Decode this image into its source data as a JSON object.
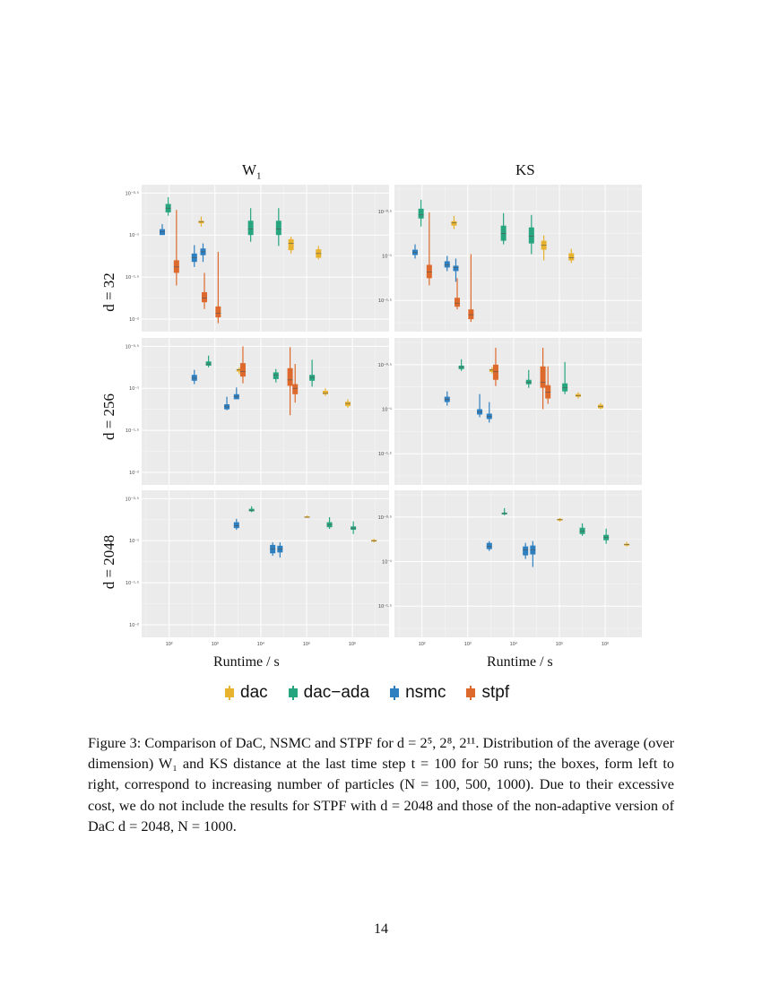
{
  "figure": {
    "column_titles": [
      "W1",
      "KS"
    ],
    "row_labels": [
      "d = 32",
      "d = 256",
      "d = 2048"
    ],
    "x_axis_title": "Runtime / s",
    "x_tick_labels": [
      "10²",
      "10³",
      "10⁴",
      "10⁵",
      "10⁶"
    ],
    "legend": [
      {
        "label": "dac",
        "color": "#E7B22D"
      },
      {
        "label": "dac−ada",
        "color": "#27A57F"
      },
      {
        "label": "nsmc",
        "color": "#2E7FBF"
      },
      {
        "label": "stpf",
        "color": "#DD6A2C"
      }
    ]
  },
  "chart_data": {
    "type": "boxplot",
    "x_scale": "log10",
    "y_scale": "log10",
    "x_unit": "Runtime / s",
    "xlim_log10": [
      1.4,
      6.8
    ],
    "series_colors": {
      "dac": "#E7B22D",
      "dac-ada": "#27A57F",
      "nsmc": "#2E7FBF",
      "stpf": "#DD6A2C"
    },
    "panels": [
      {
        "row": "d = 32",
        "column": "W1",
        "y_tick_labels": [
          "10⁻⁰·⁵",
          "10⁻¹",
          "10⁻¹·⁵",
          "10⁻²"
        ],
        "y_tick_values": [
          -0.5,
          -1,
          -1.5,
          -2
        ],
        "ylim_log10": [
          -2.15,
          -0.4
        ],
        "boxes": [
          {
            "series": "nsmc",
            "x": 1.85,
            "wl": -0.95,
            "q1": -1.0,
            "med": -0.96,
            "q3": -0.93,
            "wh": -0.87
          },
          {
            "series": "dac-ada",
            "x": 1.98,
            "wl": -0.77,
            "q1": -0.73,
            "med": -0.68,
            "q3": -0.63,
            "wh": -0.55
          },
          {
            "series": "stpf",
            "x": 2.16,
            "wl": -1.6,
            "q1": -1.45,
            "med": -1.38,
            "q3": -1.3,
            "wh": -0.7
          },
          {
            "series": "nsmc",
            "x": 2.55,
            "wl": -1.38,
            "q1": -1.32,
            "med": -1.27,
            "q3": -1.22,
            "wh": -1.12
          },
          {
            "series": "dac",
            "x": 2.7,
            "wl": -0.9,
            "q1": -0.86,
            "med": -0.84,
            "q3": -0.83,
            "wh": -0.78
          },
          {
            "series": "nsmc",
            "x": 2.74,
            "wl": -1.32,
            "q1": -1.24,
            "med": -1.2,
            "q3": -1.16,
            "wh": -1.1
          },
          {
            "series": "stpf",
            "x": 2.77,
            "wl": -1.88,
            "q1": -1.8,
            "med": -1.75,
            "q3": -1.68,
            "wh": -1.45
          },
          {
            "series": "stpf",
            "x": 3.07,
            "wl": -2.05,
            "q1": -1.98,
            "med": -1.93,
            "q3": -1.85,
            "wh": -1.2
          },
          {
            "series": "dac-ada",
            "x": 3.78,
            "wl": -1.08,
            "q1": -1.0,
            "med": -0.93,
            "q3": -0.83,
            "wh": -0.68
          },
          {
            "series": "dac-ada",
            "x": 4.39,
            "wl": -1.13,
            "q1": -1.0,
            "med": -0.93,
            "q3": -0.83,
            "wh": -0.68
          },
          {
            "series": "dac",
            "x": 4.66,
            "wl": -1.22,
            "q1": -1.18,
            "med": -1.1,
            "q3": -1.05,
            "wh": -1.02
          },
          {
            "series": "dac",
            "x": 5.26,
            "wl": -1.29,
            "q1": -1.27,
            "med": -1.22,
            "q3": -1.17,
            "wh": -1.13
          }
        ]
      },
      {
        "row": "d = 32",
        "column": "KS",
        "y_tick_labels": [
          "10⁻⁰·⁵",
          "10⁻¹",
          "10⁻¹·⁵"
        ],
        "y_tick_values": [
          -0.5,
          -1,
          -1.5
        ],
        "ylim_log10": [
          -1.85,
          -0.2
        ],
        "boxes": [
          {
            "series": "nsmc",
            "x": 1.85,
            "wl": -1.03,
            "q1": -0.99,
            "med": -0.96,
            "q3": -0.93,
            "wh": -0.87
          },
          {
            "series": "dac-ada",
            "x": 1.98,
            "wl": -0.67,
            "q1": -0.58,
            "med": -0.54,
            "q3": -0.47,
            "wh": -0.37
          },
          {
            "series": "stpf",
            "x": 2.16,
            "wl": -1.33,
            "q1": -1.25,
            "med": -1.18,
            "q3": -1.1,
            "wh": -0.51
          },
          {
            "series": "nsmc",
            "x": 2.55,
            "wl": -1.17,
            "q1": -1.13,
            "med": -1.1,
            "q3": -1.06,
            "wh": -1.0
          },
          {
            "series": "dac",
            "x": 2.7,
            "wl": -0.7,
            "q1": -0.66,
            "med": -0.63,
            "q3": -0.61,
            "wh": -0.55
          },
          {
            "series": "nsmc",
            "x": 2.74,
            "wl": -1.29,
            "q1": -1.17,
            "med": -1.13,
            "q3": -1.11,
            "wh": -1.03
          },
          {
            "series": "stpf",
            "x": 2.77,
            "wl": -1.6,
            "q1": -1.57,
            "med": -1.53,
            "q3": -1.47,
            "wh": -1.25
          },
          {
            "series": "stpf",
            "x": 3.07,
            "wl": -1.74,
            "q1": -1.71,
            "med": -1.66,
            "q3": -1.6,
            "wh": -0.98
          },
          {
            "series": "dac-ada",
            "x": 3.78,
            "wl": -0.87,
            "q1": -0.83,
            "med": -0.75,
            "q3": -0.66,
            "wh": -0.52
          },
          {
            "series": "dac-ada",
            "x": 4.39,
            "wl": -0.98,
            "q1": -0.86,
            "med": -0.78,
            "q3": -0.68,
            "wh": -0.54
          },
          {
            "series": "dac",
            "x": 4.66,
            "wl": -1.05,
            "q1": -0.93,
            "med": -0.88,
            "q3": -0.83,
            "wh": -0.77
          },
          {
            "series": "dac",
            "x": 5.26,
            "wl": -1.08,
            "q1": -1.05,
            "med": -1.02,
            "q3": -0.97,
            "wh": -0.92
          }
        ]
      },
      {
        "row": "d = 256",
        "column": "W1",
        "y_tick_labels": [
          "10⁻⁰·⁵",
          "10⁻¹",
          "10⁻¹·⁵",
          "10⁻²"
        ],
        "y_tick_values": [
          -0.5,
          -1,
          -1.5,
          -2
        ],
        "ylim_log10": [
          -2.15,
          -0.4
        ],
        "boxes": [
          {
            "series": "nsmc",
            "x": 2.55,
            "wl": -0.95,
            "q1": -0.91,
            "med": -0.88,
            "q3": -0.84,
            "wh": -0.78
          },
          {
            "series": "dac-ada",
            "x": 2.86,
            "wl": -0.75,
            "q1": -0.73,
            "med": -0.71,
            "q3": -0.68,
            "wh": -0.61
          },
          {
            "series": "nsmc",
            "x": 3.26,
            "wl": -1.26,
            "q1": -1.25,
            "med": -1.22,
            "q3": -1.19,
            "wh": -1.1
          },
          {
            "series": "nsmc",
            "x": 3.47,
            "wl": -1.13,
            "q1": -1.13,
            "med": -1.1,
            "q3": -1.07,
            "wh": -0.99
          },
          {
            "series": "dac",
            "x": 3.53,
            "wl": -0.83,
            "q1": -0.8,
            "med": -0.78,
            "q3": -0.77,
            "wh": -0.75
          },
          {
            "series": "stpf",
            "x": 3.61,
            "wl": -0.94,
            "q1": -0.86,
            "med": -0.8,
            "q3": -0.7,
            "wh": -0.5
          },
          {
            "series": "dac-ada",
            "x": 4.33,
            "wl": -0.93,
            "q1": -0.89,
            "med": -0.84,
            "q3": -0.81,
            "wh": -0.77
          },
          {
            "series": "stpf",
            "x": 4.64,
            "wl": -1.32,
            "q1": -0.97,
            "med": -0.9,
            "q3": -0.76,
            "wh": -0.51
          },
          {
            "series": "stpf",
            "x": 4.75,
            "wl": -1.17,
            "q1": -1.07,
            "med": -1.0,
            "q3": -0.95,
            "wh": -0.71
          },
          {
            "series": "dac-ada",
            "x": 5.12,
            "wl": -0.98,
            "q1": -0.91,
            "med": -0.87,
            "q3": -0.84,
            "wh": -0.66
          },
          {
            "series": "dac",
            "x": 5.41,
            "wl": -1.09,
            "q1": -1.07,
            "med": -1.06,
            "q3": -1.03,
            "wh": -1.0
          },
          {
            "series": "dac",
            "x": 5.9,
            "wl": -1.23,
            "q1": -1.21,
            "med": -1.18,
            "q3": -1.16,
            "wh": -1.13
          }
        ]
      },
      {
        "row": "d = 256",
        "column": "KS",
        "y_tick_labels": [
          "10⁻⁰·⁵",
          "10⁻¹",
          "10⁻¹·⁵"
        ],
        "y_tick_values": [
          -0.5,
          -1,
          -1.5
        ],
        "ylim_log10": [
          -1.85,
          -0.2
        ],
        "boxes": [
          {
            "series": "nsmc",
            "x": 2.55,
            "wl": -0.96,
            "q1": -0.92,
            "med": -0.89,
            "q3": -0.86,
            "wh": -0.8
          },
          {
            "series": "dac-ada",
            "x": 2.86,
            "wl": -0.57,
            "q1": -0.55,
            "med": -0.53,
            "q3": -0.51,
            "wh": -0.44
          },
          {
            "series": "nsmc",
            "x": 3.26,
            "wl": -1.09,
            "q1": -1.06,
            "med": -1.03,
            "q3": -1.0,
            "wh": -0.83
          },
          {
            "series": "nsmc",
            "x": 3.47,
            "wl": -1.15,
            "q1": -1.11,
            "med": -1.08,
            "q3": -1.05,
            "wh": -0.92
          },
          {
            "series": "dac",
            "x": 3.53,
            "wl": -0.6,
            "q1": -0.58,
            "med": -0.56,
            "q3": -0.55,
            "wh": -0.53
          },
          {
            "series": "stpf",
            "x": 3.61,
            "wl": -0.74,
            "q1": -0.67,
            "med": -0.58,
            "q3": -0.5,
            "wh": -0.31
          },
          {
            "series": "dac-ada",
            "x": 4.33,
            "wl": -0.76,
            "q1": -0.72,
            "med": -0.7,
            "q3": -0.67,
            "wh": -0.56
          },
          {
            "series": "stpf",
            "x": 4.64,
            "wl": -1.0,
            "q1": -0.76,
            "med": -0.7,
            "q3": -0.52,
            "wh": -0.31
          },
          {
            "series": "stpf",
            "x": 4.75,
            "wl": -0.94,
            "q1": -0.88,
            "med": -0.81,
            "q3": -0.73,
            "wh": -0.52
          },
          {
            "series": "dac-ada",
            "x": 5.12,
            "wl": -0.83,
            "q1": -0.8,
            "med": -0.76,
            "q3": -0.71,
            "wh": -0.47
          },
          {
            "series": "dac",
            "x": 5.41,
            "wl": -0.88,
            "q1": -0.86,
            "med": -0.85,
            "q3": -0.83,
            "wh": -0.81
          },
          {
            "series": "dac",
            "x": 5.9,
            "wl": -1.0,
            "q1": -0.99,
            "med": -0.97,
            "q3": -0.95,
            "wh": -0.93
          }
        ]
      },
      {
        "row": "d = 2048",
        "column": "W1",
        "y_tick_labels": [
          "10⁻⁰·⁵",
          "10⁻¹",
          "10⁻¹·⁵",
          "10⁻²"
        ],
        "y_tick_values": [
          -0.5,
          -1,
          -1.5,
          -2
        ],
        "ylim_log10": [
          -2.15,
          -0.4
        ],
        "boxes": [
          {
            "series": "nsmc",
            "x": 3.47,
            "wl": -0.87,
            "q1": -0.85,
            "med": -0.82,
            "q3": -0.78,
            "wh": -0.74
          },
          {
            "series": "dac-ada",
            "x": 3.8,
            "wl": -0.66,
            "q1": -0.65,
            "med": -0.64,
            "q3": -0.62,
            "wh": -0.59
          },
          {
            "series": "nsmc",
            "x": 4.26,
            "wl": -1.18,
            "q1": -1.15,
            "med": -1.1,
            "q3": -1.05,
            "wh": -1.02
          },
          {
            "series": "nsmc",
            "x": 4.42,
            "wl": -1.2,
            "q1": -1.14,
            "med": -1.1,
            "q3": -1.06,
            "wh": -1.02
          },
          {
            "series": "dac",
            "x": 5.01,
            "wl": -0.73,
            "q1": -0.72,
            "med": -0.72,
            "q3": -0.71,
            "wh": -0.7
          },
          {
            "series": "dac-ada",
            "x": 5.5,
            "wl": -0.86,
            "q1": -0.84,
            "med": -0.81,
            "q3": -0.78,
            "wh": -0.72
          },
          {
            "series": "dac-ada",
            "x": 6.02,
            "wl": -0.92,
            "q1": -0.87,
            "med": -0.85,
            "q3": -0.83,
            "wh": -0.77
          },
          {
            "series": "dac",
            "x": 6.47,
            "wl": -1.02,
            "q1": -1.01,
            "med": -1.0,
            "q3": -0.99,
            "wh": -0.98
          }
        ]
      },
      {
        "row": "d = 2048",
        "column": "KS",
        "y_tick_labels": [
          "10⁻⁰·⁵",
          "10⁻¹",
          "10⁻¹·⁵"
        ],
        "y_tick_values": [
          -0.5,
          -1,
          -1.5
        ],
        "ylim_log10": [
          -1.85,
          -0.2
        ],
        "boxes": [
          {
            "series": "nsmc",
            "x": 3.47,
            "wl": -0.88,
            "q1": -0.86,
            "med": -0.83,
            "q3": -0.79,
            "wh": -0.77
          },
          {
            "series": "dac-ada",
            "x": 3.8,
            "wl": -0.48,
            "q1": -0.47,
            "med": -0.46,
            "q3": -0.45,
            "wh": -0.4
          },
          {
            "series": "nsmc",
            "x": 4.26,
            "wl": -0.97,
            "q1": -0.93,
            "med": -0.87,
            "q3": -0.83,
            "wh": -0.79
          },
          {
            "series": "nsmc",
            "x": 4.42,
            "wl": -1.06,
            "q1": -0.92,
            "med": -0.87,
            "q3": -0.82,
            "wh": -0.77
          },
          {
            "series": "dac",
            "x": 5.01,
            "wl": -0.55,
            "q1": -0.54,
            "med": -0.53,
            "q3": -0.52,
            "wh": -0.51
          },
          {
            "series": "dac-ada",
            "x": 5.5,
            "wl": -0.71,
            "q1": -0.69,
            "med": -0.66,
            "q3": -0.62,
            "wh": -0.57
          },
          {
            "series": "dac-ada",
            "x": 6.02,
            "wl": -0.8,
            "q1": -0.76,
            "med": -0.73,
            "q3": -0.7,
            "wh": -0.63
          },
          {
            "series": "dac",
            "x": 6.47,
            "wl": -0.83,
            "q1": -0.82,
            "med": -0.81,
            "q3": -0.8,
            "wh": -0.78
          }
        ]
      }
    ]
  },
  "caption": {
    "label": "Figure 3:",
    "text": "Comparison of DaC, NSMC and STPF for d = 2⁵, 2⁸, 2¹¹. Distribution of the average (over dimension) W₁ and KS distance at the last time step t = 100 for 50 runs; the boxes, form left to right, correspond to increasing number of particles (N = 100, 500, 1000). Due to their excessive cost, we do not include the results for STPF with d = 2048 and those of the non-adaptive version of DaC d = 2048, N = 1000."
  },
  "page_number": "14"
}
